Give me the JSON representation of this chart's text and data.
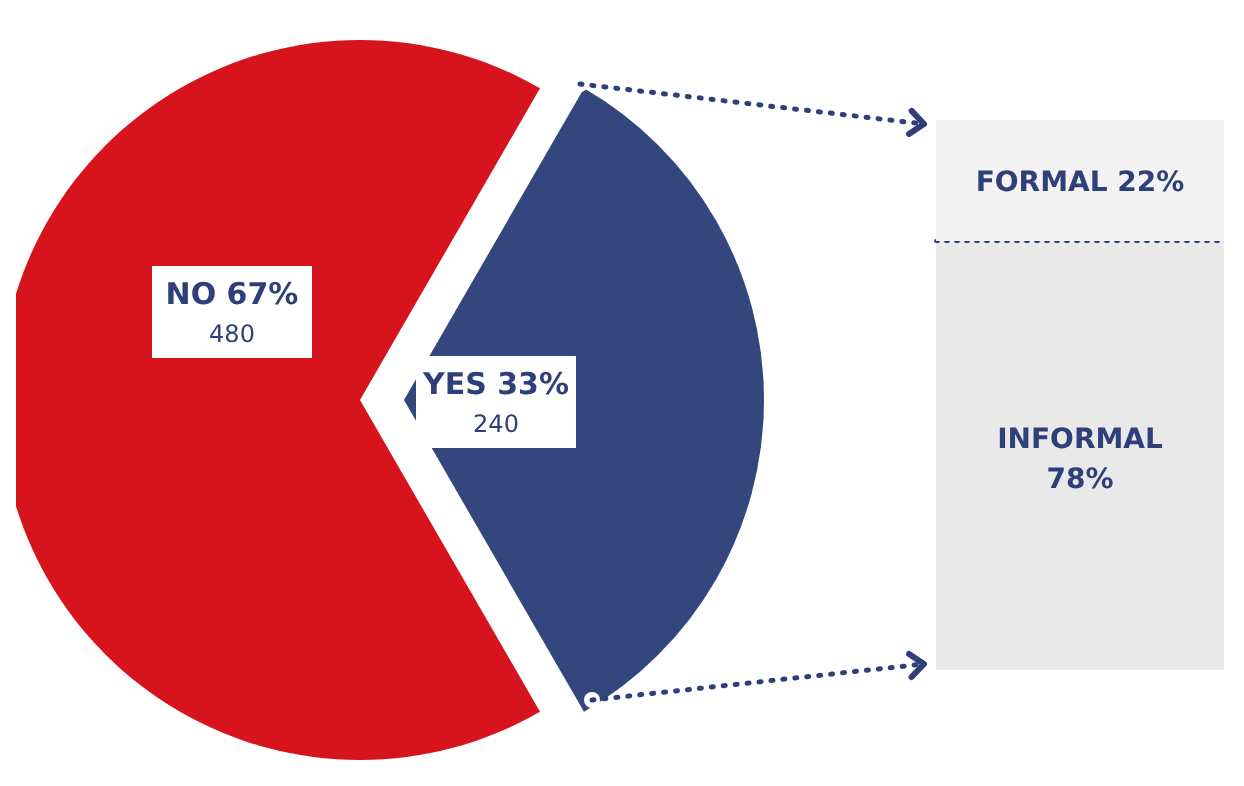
{
  "chart_data": [
    {
      "type": "pie",
      "categories": [
        "NO 67%",
        "YES 33%"
      ],
      "values": [
        480,
        240
      ],
      "colors": [
        "#d7141e",
        "#34467e"
      ],
      "data_labels": true
    },
    {
      "type": "bar",
      "stacked": true,
      "categories": [
        null
      ],
      "series": [
        {
          "name": "INFORMAL",
          "color": "#e9e9e9",
          "values": [
            78
          ],
          "value_labels": [
            "78%"
          ]
        },
        {
          "name": "FORMAL",
          "color": "#f3f3f3",
          "values": [
            22
          ],
          "value_labels": [
            "22%"
          ]
        }
      ]
    }
  ]
}
